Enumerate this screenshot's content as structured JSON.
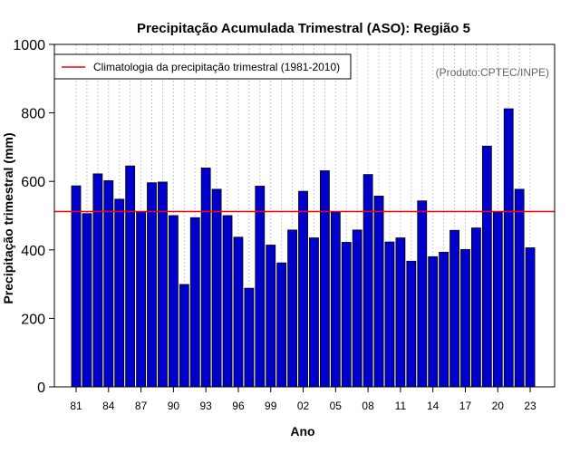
{
  "chart_data": {
    "type": "bar",
    "title": "Precipitação Acumulada Trimestral (ASO): Região 5",
    "xlabel": "Ano",
    "ylabel": "Precipitação trimestral (mm)",
    "ylim": [
      0,
      1000
    ],
    "yticks": [
      "0",
      "200",
      "400",
      "600",
      "800",
      "1000"
    ],
    "years": [
      1981,
      1982,
      1983,
      1984,
      1985,
      1986,
      1987,
      1988,
      1989,
      1990,
      1991,
      1992,
      1993,
      1994,
      1995,
      1996,
      1997,
      1998,
      1999,
      2000,
      2001,
      2002,
      2003,
      2004,
      2005,
      2006,
      2007,
      2008,
      2009,
      2010,
      2011,
      2012,
      2013,
      2014,
      2015,
      2016,
      2017,
      2018,
      2019,
      2020,
      2021,
      2022,
      2023
    ],
    "values": [
      587,
      506,
      622,
      602,
      548,
      645,
      512,
      596,
      598,
      500,
      299,
      494,
      639,
      577,
      500,
      437,
      288,
      586,
      414,
      362,
      458,
      571,
      435,
      631,
      510,
      422,
      458,
      620,
      557,
      423,
      435,
      367,
      543,
      380,
      393,
      457,
      401,
      464,
      703,
      510,
      812,
      577,
      406
    ],
    "xtick_labels": [
      "81",
      "84",
      "87",
      "90",
      "93",
      "96",
      "99",
      "02",
      "05",
      "08",
      "11",
      "14",
      "17",
      "20",
      "23"
    ],
    "xtick_years": [
      1981,
      1984,
      1987,
      1990,
      1993,
      1996,
      1999,
      2002,
      2005,
      2008,
      2011,
      2014,
      2017,
      2020,
      2023
    ],
    "climatology": 512,
    "bar_color": "#0000cd",
    "line_color": "#ff0000",
    "grid": true,
    "legend": {
      "position": "top-left",
      "entries": [
        {
          "label": "Climatologia da precipitação trimestral (1981-2010)",
          "color": "#ff0000"
        }
      ]
    },
    "annotation": "(Produto:CPTEC/INPE)"
  }
}
